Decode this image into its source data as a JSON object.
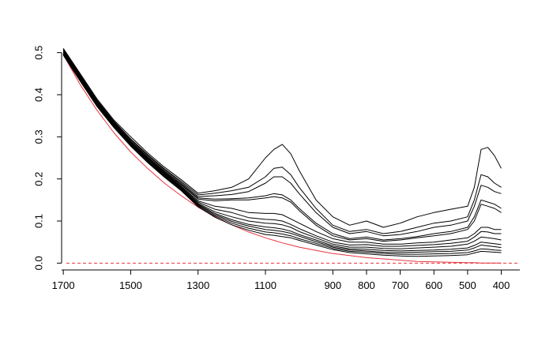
{
  "chart_data": {
    "type": "line",
    "title": "",
    "xlabel": "",
    "ylabel": "",
    "x_reversed": true,
    "xlim": [
      1705,
      345
    ],
    "ylim": [
      -0.005,
      0.55
    ],
    "x_ticks": [
      1700,
      1500,
      1300,
      1100,
      900,
      800,
      700,
      600,
      500,
      400
    ],
    "y_ticks": [
      0.0,
      0.1,
      0.2,
      0.3,
      0.4,
      0.5
    ],
    "x_tick_labels": [
      "1700",
      "1500",
      "1300",
      "1100",
      "900",
      "800",
      "700",
      "600",
      "500",
      "400"
    ],
    "y_tick_labels": [
      "0.0",
      "0.1",
      "0.2",
      "0.3",
      "0.4",
      "0.5"
    ],
    "grid": false,
    "legend": "none",
    "colors": {
      "series": "#000000",
      "baseline": "#e8353f",
      "reference": "#e8353f"
    },
    "x": [
      1700,
      1650,
      1600,
      1550,
      1500,
      1450,
      1400,
      1350,
      1300,
      1250,
      1200,
      1150,
      1100,
      1075,
      1050,
      1025,
      1000,
      950,
      900,
      850,
      800,
      750,
      700,
      650,
      600,
      550,
      500,
      480,
      460,
      440,
      420,
      400
    ],
    "series": [
      {
        "values": [
          0.51,
          0.45,
          0.39,
          0.34,
          0.3,
          0.262,
          0.228,
          0.198,
          0.166,
          0.172,
          0.18,
          0.2,
          0.25,
          0.27,
          0.282,
          0.26,
          0.22,
          0.15,
          0.11,
          0.09,
          0.1,
          0.085,
          0.095,
          0.11,
          0.12,
          0.128,
          0.135,
          0.18,
          0.27,
          0.275,
          0.255,
          0.225
        ]
      },
      {
        "values": [
          0.508,
          0.447,
          0.387,
          0.337,
          0.295,
          0.258,
          0.224,
          0.194,
          0.162,
          0.166,
          0.172,
          0.18,
          0.205,
          0.225,
          0.228,
          0.21,
          0.18,
          0.13,
          0.09,
          0.075,
          0.08,
          0.07,
          0.075,
          0.085,
          0.095,
          0.1,
          0.11,
          0.15,
          0.21,
          0.205,
          0.19,
          0.18
        ]
      },
      {
        "values": [
          0.506,
          0.445,
          0.385,
          0.335,
          0.293,
          0.256,
          0.222,
          0.191,
          0.158,
          0.16,
          0.163,
          0.17,
          0.19,
          0.205,
          0.205,
          0.19,
          0.165,
          0.12,
          0.085,
          0.07,
          0.075,
          0.065,
          0.068,
          0.075,
          0.085,
          0.09,
          0.1,
          0.135,
          0.185,
          0.18,
          0.17,
          0.165
        ]
      },
      {
        "values": [
          0.504,
          0.443,
          0.383,
          0.333,
          0.29,
          0.253,
          0.219,
          0.188,
          0.155,
          0.152,
          0.153,
          0.155,
          0.16,
          0.165,
          0.162,
          0.15,
          0.13,
          0.095,
          0.07,
          0.058,
          0.062,
          0.055,
          0.058,
          0.063,
          0.07,
          0.075,
          0.085,
          0.11,
          0.15,
          0.145,
          0.14,
          0.13
        ]
      },
      {
        "values": [
          0.502,
          0.441,
          0.381,
          0.331,
          0.288,
          0.251,
          0.217,
          0.186,
          0.152,
          0.148,
          0.15,
          0.15,
          0.155,
          0.158,
          0.155,
          0.145,
          0.125,
          0.09,
          0.065,
          0.055,
          0.058,
          0.052,
          0.055,
          0.06,
          0.065,
          0.07,
          0.08,
          0.1,
          0.14,
          0.135,
          0.13,
          0.12
        ]
      },
      {
        "values": [
          0.5,
          0.439,
          0.379,
          0.329,
          0.286,
          0.249,
          0.215,
          0.183,
          0.148,
          0.135,
          0.13,
          0.12,
          0.118,
          0.118,
          0.115,
          0.105,
          0.095,
          0.075,
          0.058,
          0.05,
          0.05,
          0.045,
          0.045,
          0.048,
          0.05,
          0.055,
          0.06,
          0.07,
          0.085,
          0.085,
          0.08,
          0.08
        ]
      },
      {
        "values": [
          0.499,
          0.437,
          0.377,
          0.327,
          0.284,
          0.247,
          0.213,
          0.181,
          0.145,
          0.128,
          0.12,
          0.108,
          0.104,
          0.103,
          0.1,
          0.092,
          0.082,
          0.065,
          0.05,
          0.043,
          0.044,
          0.04,
          0.04,
          0.042,
          0.044,
          0.047,
          0.052,
          0.062,
          0.075,
          0.074,
          0.07,
          0.07
        ]
      },
      {
        "values": [
          0.498,
          0.436,
          0.376,
          0.326,
          0.283,
          0.245,
          0.211,
          0.179,
          0.142,
          0.122,
          0.11,
          0.1,
          0.095,
          0.094,
          0.091,
          0.085,
          0.075,
          0.06,
          0.045,
          0.038,
          0.038,
          0.035,
          0.034,
          0.036,
          0.038,
          0.04,
          0.045,
          0.052,
          0.062,
          0.06,
          0.058,
          0.055
        ]
      },
      {
        "values": [
          0.497,
          0.435,
          0.375,
          0.325,
          0.281,
          0.243,
          0.209,
          0.177,
          0.14,
          0.118,
          0.103,
          0.092,
          0.086,
          0.084,
          0.081,
          0.076,
          0.068,
          0.055,
          0.041,
          0.034,
          0.033,
          0.03,
          0.029,
          0.03,
          0.031,
          0.033,
          0.036,
          0.042,
          0.05,
          0.048,
          0.046,
          0.044
        ]
      },
      {
        "values": [
          0.496,
          0.434,
          0.374,
          0.324,
          0.28,
          0.242,
          0.207,
          0.175,
          0.138,
          0.115,
          0.099,
          0.088,
          0.08,
          0.078,
          0.075,
          0.071,
          0.064,
          0.051,
          0.038,
          0.031,
          0.029,
          0.026,
          0.025,
          0.026,
          0.027,
          0.028,
          0.031,
          0.036,
          0.043,
          0.041,
          0.039,
          0.037
        ]
      },
      {
        "values": [
          0.495,
          0.433,
          0.373,
          0.323,
          0.279,
          0.24,
          0.205,
          0.173,
          0.136,
          0.112,
          0.095,
          0.083,
          0.074,
          0.072,
          0.069,
          0.065,
          0.058,
          0.047,
          0.035,
          0.028,
          0.026,
          0.023,
          0.021,
          0.021,
          0.022,
          0.023,
          0.025,
          0.029,
          0.034,
          0.033,
          0.031,
          0.03
        ]
      },
      {
        "values": [
          0.494,
          0.432,
          0.372,
          0.322,
          0.278,
          0.239,
          0.204,
          0.172,
          0.134,
          0.109,
          0.091,
          0.078,
          0.068,
          0.066,
          0.063,
          0.06,
          0.054,
          0.043,
          0.032,
          0.025,
          0.022,
          0.019,
          0.017,
          0.016,
          0.017,
          0.018,
          0.02,
          0.024,
          0.028,
          0.027,
          0.026,
          0.025
        ]
      }
    ],
    "baseline_curve": {
      "values": [
        0.495,
        0.424,
        0.363,
        0.31,
        0.264,
        0.225,
        0.19,
        0.16,
        0.133,
        0.11,
        0.091,
        0.074,
        0.06,
        0.054,
        0.048,
        0.043,
        0.038,
        0.03,
        0.023,
        0.018,
        0.013,
        0.01,
        0.007,
        0.004,
        0.003,
        0.002,
        0.001,
        0.001,
        0.0,
        0.0,
        0.0,
        0.0
      ]
    },
    "reference_line": {
      "y": 0.0,
      "style": "dashed"
    }
  }
}
